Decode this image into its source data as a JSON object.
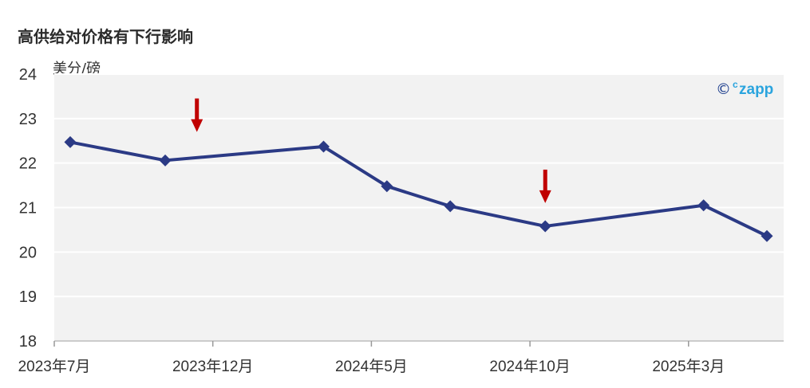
{
  "chart_data": {
    "type": "line",
    "title": "高供给对价格有下行影响",
    "ylabel": "美分/磅",
    "ylim": [
      18,
      24
    ],
    "yticks": [
      18,
      19,
      20,
      21,
      22,
      23,
      24
    ],
    "x": [
      "2023-07",
      "2023-10",
      "2024-03",
      "2024-05",
      "2024-07",
      "2024-10",
      "2025-03",
      "2025-05"
    ],
    "xtick_labels": [
      "2023年7月",
      "2023年12月",
      "2024年5月",
      "2024年10月",
      "2025年3月"
    ],
    "series": [
      {
        "values": [
          22.47,
          22.06,
          22.37,
          21.48,
          21.03,
          20.58,
          21.05,
          20.36
        ],
        "color": "#2b3a85"
      }
    ],
    "annotations": [
      {
        "type": "down-arrow",
        "x": "2023-11",
        "y": 22.7,
        "color": "#c00000"
      },
      {
        "type": "down-arrow",
        "x": "2024-10",
        "y": 21.1,
        "color": "#c00000"
      }
    ],
    "grid": true,
    "plot_background": "#f2f2f2",
    "watermark": {
      "symbol": "©",
      "sup": "c",
      "text": "zapp"
    }
  }
}
